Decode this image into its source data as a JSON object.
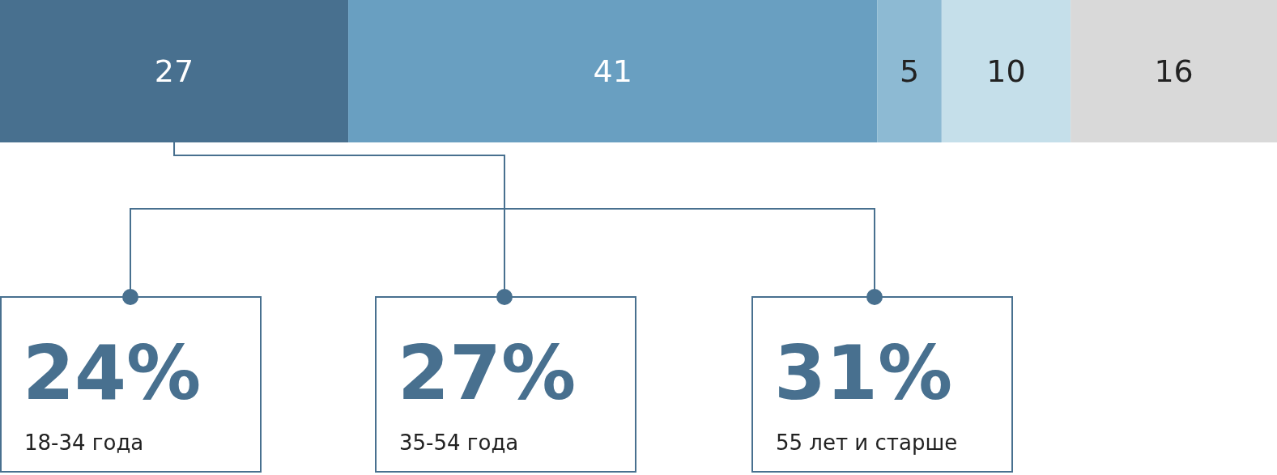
{
  "chart_data": {
    "type": "bar",
    "orientation": "horizontal",
    "stacked": true,
    "categories": [
      null
    ],
    "xlim": [
      0,
      99
    ],
    "tick_labels": false,
    "data_labels": true,
    "series": [
      {
        "color": "#48708f",
        "values": [
          27
        ]
      },
      {
        "color": "#699fc1",
        "values": [
          41
        ]
      },
      {
        "color": "#8dbad3",
        "values": [
          5
        ]
      },
      {
        "color": "#c5dfea",
        "values": [
          10
        ]
      },
      {
        "color": "#d9d9d9",
        "values": [
          16
        ]
      }
    ],
    "annotations": [
      "24%",
      "18-34 года",
      "27%",
      "35-54 года",
      "31%",
      "55 лет и старше"
    ]
  }
}
